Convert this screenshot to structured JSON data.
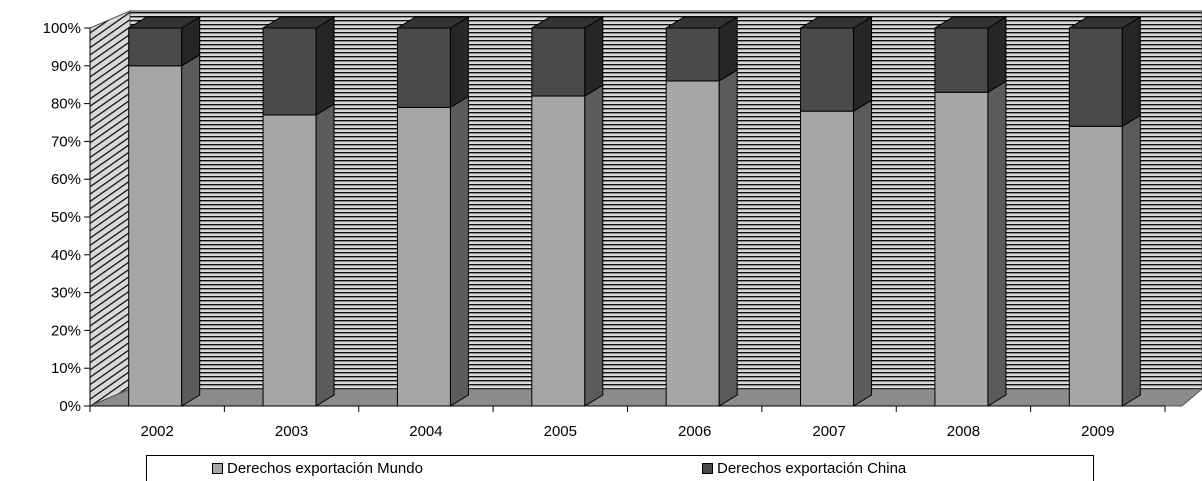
{
  "chart_data": {
    "type": "bar",
    "stacked": true,
    "three_d": true,
    "normalized_percent": true,
    "categories": [
      "2002",
      "2003",
      "2004",
      "2005",
      "2006",
      "2007",
      "2008",
      "2009"
    ],
    "series": [
      {
        "name": "Derechos exportación Mundo",
        "color": "#a6a6a6",
        "values": [
          90,
          77,
          79,
          82,
          86,
          78,
          83,
          74
        ]
      },
      {
        "name": "Derechos exportación China",
        "color": "#4a4a4a",
        "values": [
          10,
          23,
          21,
          18,
          14,
          22,
          17,
          26
        ]
      }
    ],
    "y_ticks": [
      "0%",
      "10%",
      "20%",
      "30%",
      "40%",
      "50%",
      "60%",
      "70%",
      "80%",
      "90%",
      "100%"
    ],
    "ylim": [
      0,
      100
    ],
    "grid": true,
    "legend_position": "bottom",
    "title": "",
    "xlabel": "",
    "ylabel": ""
  }
}
